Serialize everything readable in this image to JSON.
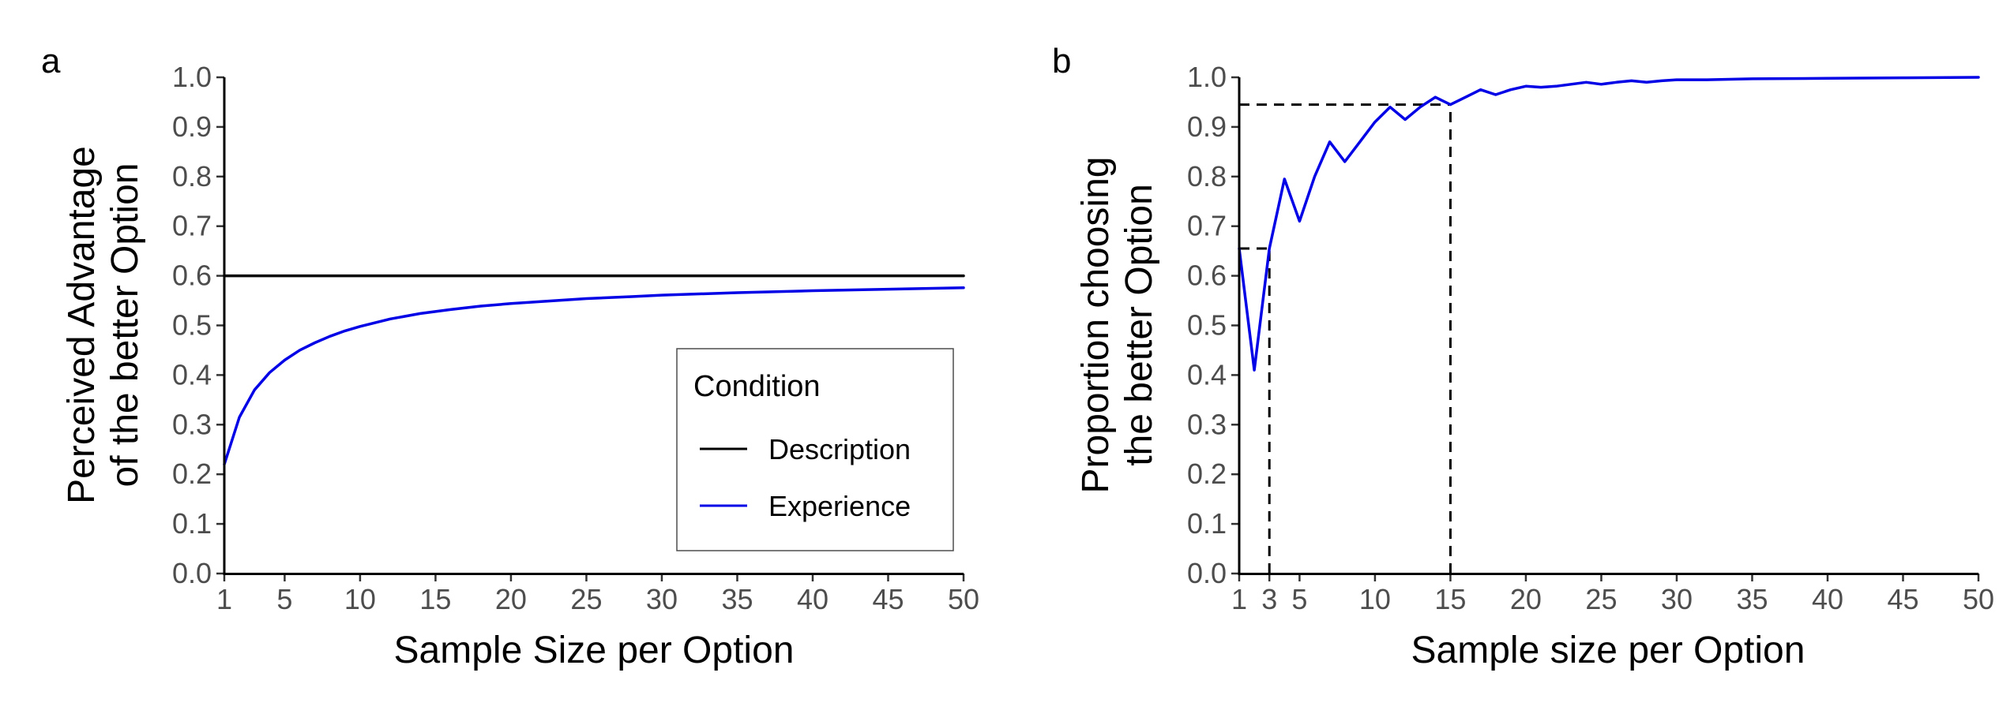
{
  "chart_data": [
    {
      "type": "line",
      "panel_label": "a",
      "xlabel": "Sample Size per Option",
      "ylabel": [
        "Perceived Advantage",
        "of the better Option"
      ],
      "xlim": [
        1,
        50
      ],
      "ylim": [
        0,
        1
      ],
      "x_ticks": [
        1,
        5,
        10,
        15,
        20,
        25,
        30,
        35,
        40,
        45,
        50
      ],
      "y_ticks": [
        "0.0",
        "0.1",
        "0.2",
        "0.3",
        "0.4",
        "0.5",
        "0.6",
        "0.7",
        "0.8",
        "0.9",
        "1.0"
      ],
      "grid": false,
      "legend": {
        "title": "Condition",
        "position": "bottom-right",
        "entries": [
          {
            "label": "Description",
            "color": "#000000"
          },
          {
            "label": "Experience",
            "color": "#0000e6"
          }
        ]
      },
      "series": [
        {
          "name": "Description",
          "color": "#000000",
          "x": [
            1,
            50
          ],
          "y": [
            0.6,
            0.6
          ]
        },
        {
          "name": "Experience",
          "color": "#0000e6",
          "x": [
            1,
            2,
            3,
            4,
            5,
            6,
            7,
            8,
            9,
            10,
            12,
            14,
            16,
            18,
            20,
            22,
            25,
            28,
            30,
            35,
            40,
            45,
            50
          ],
          "y": [
            0.22,
            0.315,
            0.37,
            0.405,
            0.43,
            0.45,
            0.465,
            0.478,
            0.489,
            0.498,
            0.513,
            0.524,
            0.532,
            0.539,
            0.544,
            0.548,
            0.554,
            0.558,
            0.561,
            0.566,
            0.57,
            0.573,
            0.576
          ]
        }
      ]
    },
    {
      "type": "line",
      "panel_label": "b",
      "xlabel": "Sample size per Option",
      "ylabel": [
        "Proportion choosing",
        "the better Option"
      ],
      "xlim": [
        1,
        50
      ],
      "ylim": [
        0,
        1
      ],
      "x_ticks": [
        1,
        3,
        5,
        10,
        15,
        20,
        25,
        30,
        35,
        40,
        45,
        50
      ],
      "y_ticks": [
        "0.0",
        "0.1",
        "0.2",
        "0.3",
        "0.4",
        "0.5",
        "0.6",
        "0.7",
        "0.8",
        "0.9",
        "1.0"
      ],
      "grid": false,
      "reference_lines": [
        {
          "x": 3,
          "y": 0.655
        },
        {
          "x": 15,
          "y": 0.945
        }
      ],
      "series": [
        {
          "name": "",
          "color": "#0000e6",
          "x": [
            1,
            2,
            3,
            4,
            5,
            6,
            7,
            8,
            9,
            10,
            11,
            12,
            13,
            14,
            15,
            16,
            17,
            18,
            19,
            20,
            21,
            22,
            23,
            24,
            25,
            26,
            27,
            28,
            29,
            30,
            32,
            35,
            40,
            45,
            50
          ],
          "y": [
            0.655,
            0.41,
            0.655,
            0.795,
            0.71,
            0.8,
            0.87,
            0.83,
            0.87,
            0.91,
            0.94,
            0.915,
            0.94,
            0.96,
            0.945,
            0.96,
            0.975,
            0.965,
            0.975,
            0.982,
            0.98,
            0.982,
            0.986,
            0.99,
            0.986,
            0.99,
            0.993,
            0.99,
            0.993,
            0.995,
            0.995,
            0.997,
            0.998,
            0.999,
            1.0
          ]
        }
      ]
    }
  ]
}
